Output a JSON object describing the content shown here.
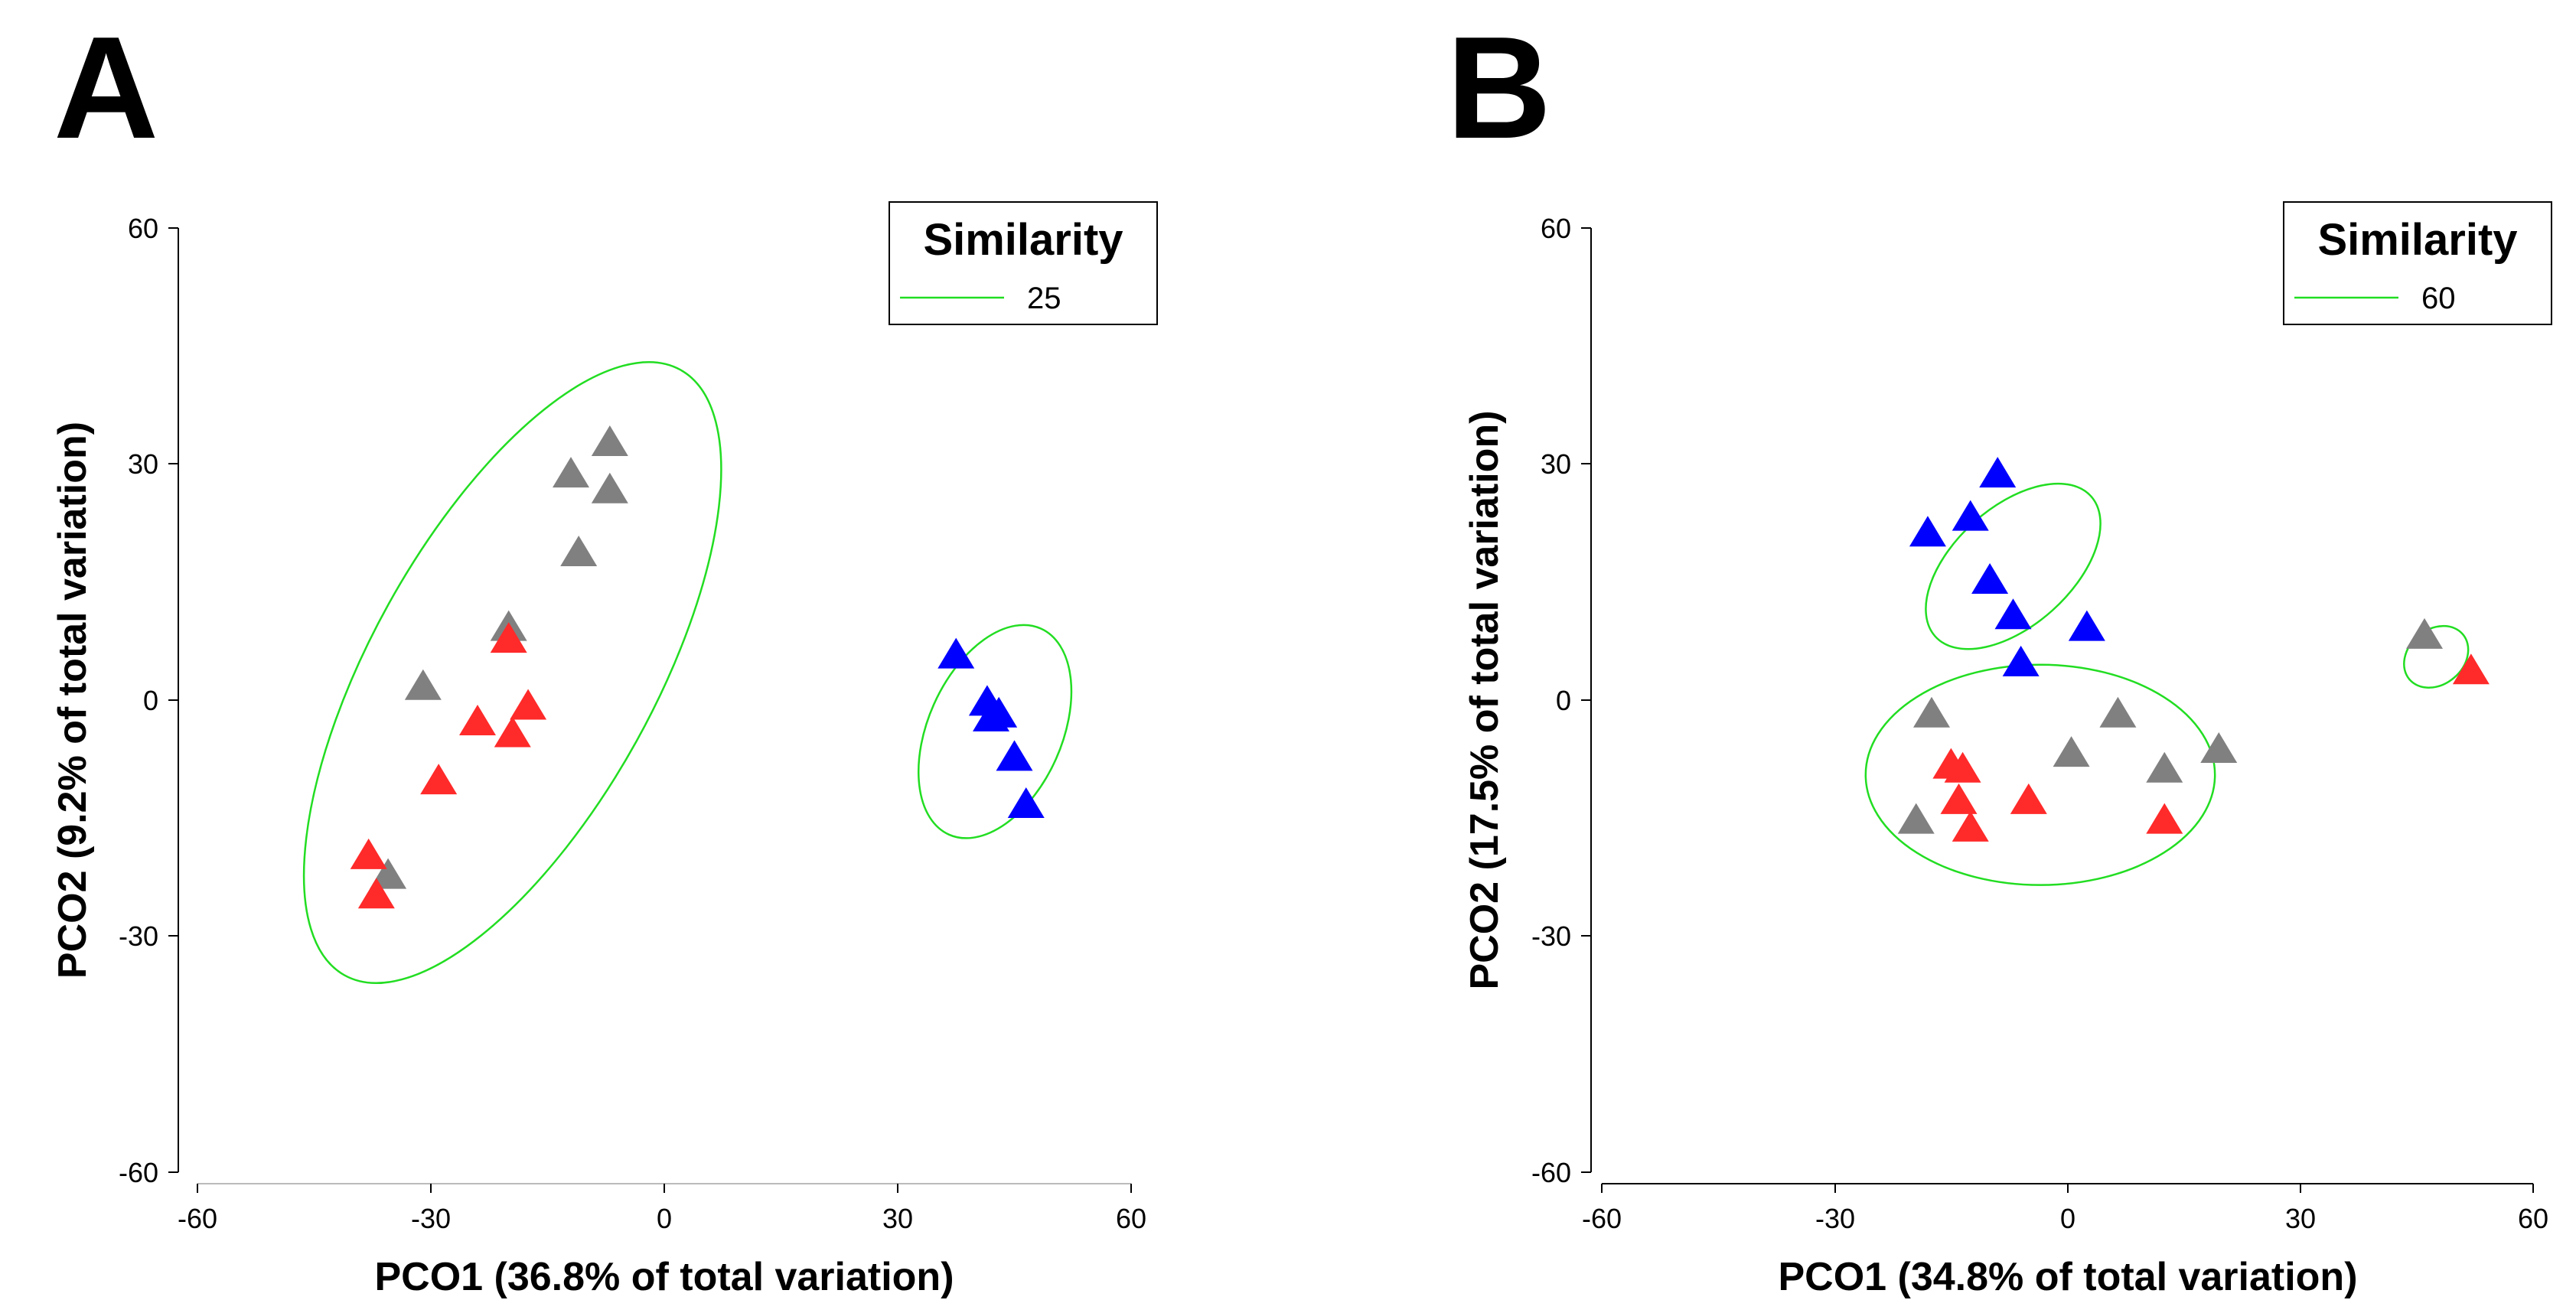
{
  "chart_data": [
    {
      "type": "scatter",
      "panel_label": "A",
      "xlabel": "PCO1 (36.8% of total variation)",
      "ylabel": "PCO2 (9.2% of total variation)",
      "xlim": [
        -60,
        60
      ],
      "ylim": [
        -60,
        60
      ],
      "xticks": [
        -60,
        -30,
        0,
        30,
        60
      ],
      "yticks": [
        60,
        30,
        0,
        -30,
        -60
      ],
      "legend": {
        "title": "Similarity",
        "value": "25",
        "position": "top-right"
      },
      "colors": {
        "gray": "#808080",
        "red": "#ff2a2a",
        "blue": "#0000ff",
        "hull": "#22dd22"
      },
      "series": [
        {
          "name": "gray",
          "color": "#808080",
          "points": [
            [
              -12,
              28.5
            ],
            [
              -7,
              32.5
            ],
            [
              -7,
              26.5
            ],
            [
              -11,
              18.5
            ],
            [
              -20,
              9
            ],
            [
              -31,
              1.5
            ],
            [
              -35.5,
              -22.5
            ]
          ]
        },
        {
          "name": "red",
          "color": "#ff2a2a",
          "points": [
            [
              -20,
              7.5
            ],
            [
              -24,
              -3
            ],
            [
              -17.5,
              -1
            ],
            [
              -19.5,
              -4.5
            ],
            [
              -29,
              -10.5
            ],
            [
              -38,
              -20
            ],
            [
              -37,
              -25
            ]
          ]
        },
        {
          "name": "blue",
          "color": "#0000ff",
          "points": [
            [
              37.5,
              5.5
            ],
            [
              41.5,
              -0.5
            ],
            [
              42,
              -2.5
            ],
            [
              43,
              -2
            ],
            [
              45,
              -7.5
            ],
            [
              46.5,
              -13.5
            ]
          ]
        }
      ],
      "ellipses": [
        {
          "cx": -19.5,
          "cy": 3.5,
          "rx": 44.5,
          "ry": 18,
          "angle_deg": 61
        },
        {
          "cx": 42.5,
          "cy": -4,
          "rx": 14.5,
          "ry": 8.5,
          "angle_deg": 66
        }
      ]
    },
    {
      "type": "scatter",
      "panel_label": "B",
      "xlabel": "PCO1 (34.8% of total variation)",
      "ylabel": "PCO2 (17.5% of total variation)",
      "xlim": [
        -60,
        60
      ],
      "ylim": [
        -60,
        60
      ],
      "xticks": [
        -60,
        -30,
        0,
        30,
        60
      ],
      "yticks": [
        60,
        30,
        0,
        -30,
        -60
      ],
      "legend": {
        "title": "Similarity",
        "value": "60",
        "position": "top-right"
      },
      "colors": {
        "gray": "#808080",
        "red": "#ff2a2a",
        "blue": "#0000ff",
        "hull": "#22dd22"
      },
      "series": [
        {
          "name": "gray",
          "color": "#808080",
          "points": [
            [
              -17.5,
              -2
            ],
            [
              -19.5,
              -15.5
            ],
            [
              0.5,
              -7
            ],
            [
              6.5,
              -2
            ],
            [
              12.5,
              -9
            ],
            [
              19.5,
              -6.5
            ],
            [
              46,
              8
            ]
          ]
        },
        {
          "name": "red",
          "color": "#ff2a2a",
          "points": [
            [
              -15,
              -8.5
            ],
            [
              -13.5,
              -9
            ],
            [
              -14,
              -13
            ],
            [
              -12.5,
              -16.5
            ],
            [
              -5,
              -13
            ],
            [
              12.5,
              -15.5
            ],
            [
              52,
              3.5
            ]
          ]
        },
        {
          "name": "blue",
          "color": "#0000ff",
          "points": [
            [
              -9,
              28.5
            ],
            [
              -18,
              21
            ],
            [
              -12.5,
              23
            ],
            [
              -10,
              15
            ],
            [
              -7,
              10.5
            ],
            [
              -6,
              4.5
            ],
            [
              2.5,
              9
            ]
          ]
        }
      ],
      "ellipses": [
        {
          "cx": -7,
          "cy": 17,
          "rx": 13.5,
          "ry": 7.5,
          "angle_deg": 42
        },
        {
          "cx": -3.5,
          "cy": -9.5,
          "rx": 22.5,
          "ry": 14,
          "angle_deg": 0
        },
        {
          "cx": 47.5,
          "cy": 5.5,
          "rx": 4.5,
          "ry": 3.5,
          "angle_deg": 40
        }
      ]
    }
  ]
}
